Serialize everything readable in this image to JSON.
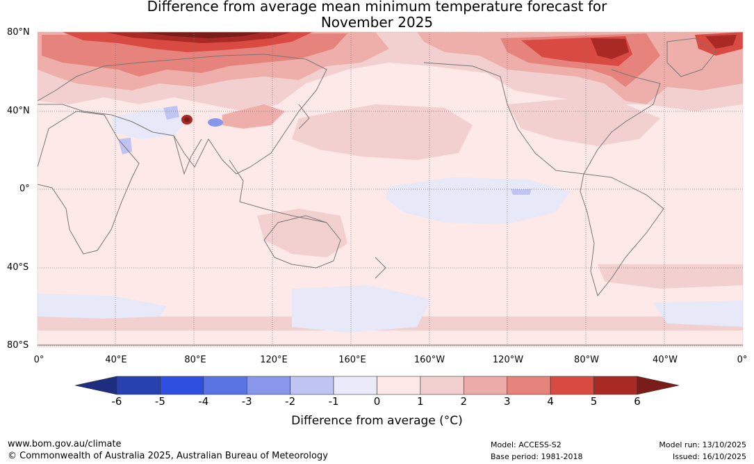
{
  "title": {
    "line1": "Difference from average mean minimum temperature forecast for",
    "line2": "November 2025"
  },
  "map": {
    "lat_labels": [
      "80°N",
      "40°N",
      "0°",
      "40°S",
      "80°S"
    ],
    "lon_labels": [
      "0°",
      "40°E",
      "80°E",
      "120°E",
      "160°E",
      "160°W",
      "120°W",
      "80°W",
      "40°W",
      "0°"
    ],
    "colors": {
      "ocean_base": "#fce9e8",
      "warm_1_2": "#f3d0d0",
      "warm_2_3": "#eeafab",
      "warm_3_4": "#e6837c",
      "warm_4_5": "#d84a42",
      "warm_5_6": "#a92a24",
      "warm_6plus": "#7a1c17",
      "cool_0_m1": "#e7e8f8",
      "cool_m1_m2": "#bfc4f2",
      "cool_m2_m3": "#8896ec",
      "coast": "#777777",
      "grid": "#777777"
    }
  },
  "colorbar": {
    "ticks": [
      "-6",
      "-5",
      "-4",
      "-3",
      "-2",
      "-1",
      "0",
      "1",
      "2",
      "3",
      "4",
      "5",
      "6"
    ],
    "colors": [
      "#1f2d80",
      "#2741b0",
      "#2f4fe0",
      "#5a74e4",
      "#8896ec",
      "#bfc4f2",
      "#eaeaf9",
      "#fce9e8",
      "#f3d0d0",
      "#ecaaa8",
      "#e6837c",
      "#d84a42",
      "#a92a24",
      "#7a1c17"
    ],
    "label": "Difference from average (°C)"
  },
  "footer": {
    "url": "www.bom.gov.au/climate",
    "copyright": "© Commonwealth of Australia 2025, Australian Bureau of Meteorology",
    "model": "Model: ACCESS-S2",
    "base_period": "Base period: 1981-2018",
    "model_run": "Model run: 13/10/2025",
    "issued": "Issued: 16/10/2025"
  }
}
